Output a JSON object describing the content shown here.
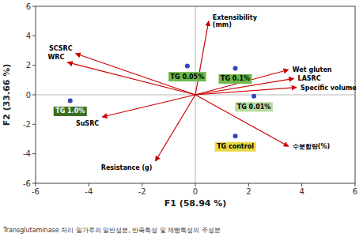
{
  "chart_data": {
    "type": "biplot",
    "xlabel": "F1 (58.94 %)",
    "ylabel": "F2 (33.66 %)",
    "annotations": [
      "Transglutaminase 처리 밀가루의 일반성분, 반죽특성 및 제빵특성의 주성분"
    ],
    "xlim": [
      -6,
      6
    ],
    "ylim": [
      -6,
      6
    ],
    "xticks": [
      -6,
      -4,
      -2,
      0,
      2,
      4,
      6
    ],
    "yticks": [
      -6,
      -4,
      -2,
      0,
      2,
      4,
      6
    ],
    "series": [
      {
        "type": "arrow",
        "color": "#cc0000",
        "x": [
          0.5,
          3.5,
          3.7,
          3.8,
          3.5,
          -1.5,
          -3.5,
          -4.5,
          -4.8
        ],
        "values": [
          5.0,
          1.7,
          1.1,
          0.5,
          -3.5,
          -4.5,
          -1.5,
          2.8,
          2.2
        ],
        "labels": [
          "Extensibility\n(mm)",
          "Wet gluten",
          "LASRC",
          "Specific volume",
          "수분함량(%)",
          "Resistance (g)",
          "SuSRC",
          "SCSRC",
          "WRC"
        ]
      },
      {
        "type": "scatter",
        "color": "#3344bb",
        "marker": "circle",
        "x": [
          -0.3,
          1.5,
          2.2,
          1.5,
          -4.7
        ],
        "values": [
          1.95,
          1.8,
          -0.1,
          -2.8,
          -0.4
        ],
        "labels": [
          "TG 0.05%",
          "TG 0.1%",
          "TG 0.01%",
          "TG control",
          "TG 1.0%"
        ],
        "colors": [
          "#6db84a",
          "#6db84a",
          "#b8dca0",
          "#e8d840",
          "#3a6e20"
        ],
        "text_colors": [
          "black",
          "black",
          "black",
          "black",
          "white"
        ]
      }
    ]
  }
}
